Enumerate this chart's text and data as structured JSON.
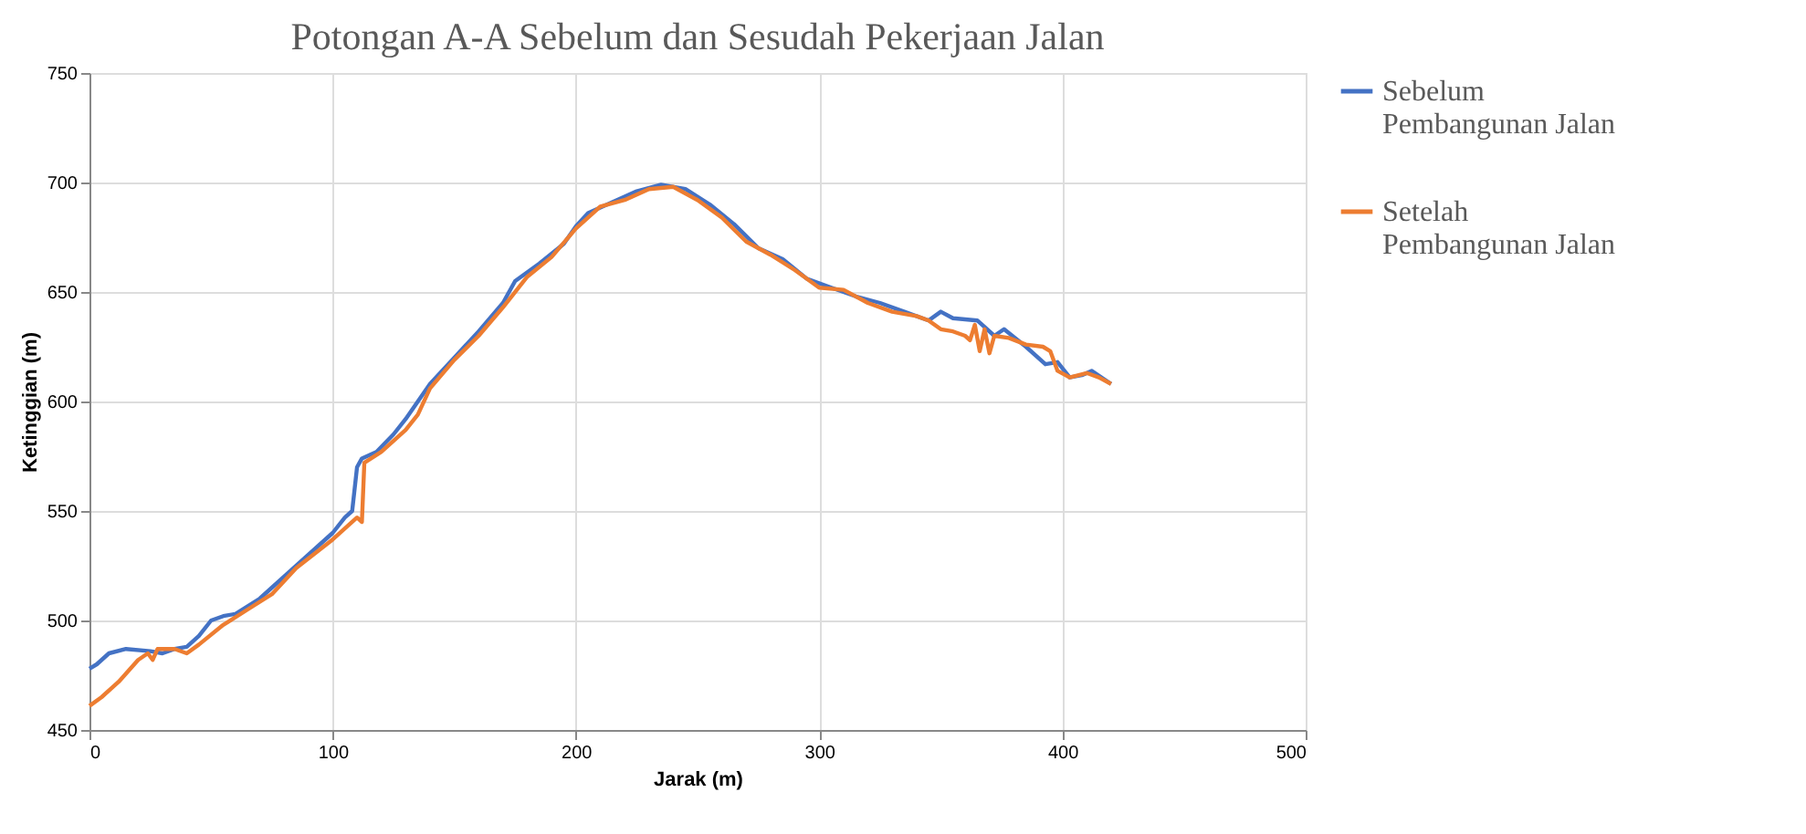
{
  "chart_data": {
    "type": "line",
    "title": "Potongan A-A Sebelum dan Sesudah Pekerjaan Jalan",
    "xlabel": "Jarak (m)",
    "ylabel": "Ketinggian (m)",
    "xlim": [
      0,
      500
    ],
    "xticks": [
      0,
      100,
      200,
      300,
      400,
      500
    ],
    "ylim": [
      450,
      750
    ],
    "yticks": [
      450,
      500,
      550,
      600,
      650,
      700,
      750
    ],
    "grid": true,
    "legend": "right",
    "marker": "none",
    "line_style": "solid",
    "series": [
      {
        "name": "Sebelum Pembangunan Jalan",
        "color": "#4472c4",
        "x": [
          0,
          3,
          8,
          15,
          25,
          30,
          35,
          40,
          45,
          50,
          55,
          60,
          70,
          80,
          90,
          100,
          105,
          108,
          110,
          112,
          118,
          125,
          130,
          135,
          140,
          150,
          160,
          170,
          175,
          185,
          195,
          200,
          205,
          215,
          225,
          235,
          245,
          255,
          265,
          275,
          285,
          295,
          305,
          315,
          325,
          335,
          345,
          350,
          355,
          365,
          372,
          376,
          385,
          393,
          398,
          403,
          408,
          412,
          420
        ],
        "values": [
          478,
          480,
          485,
          487,
          486,
          485,
          487,
          488,
          493,
          500,
          502,
          503,
          510,
          520,
          530,
          540,
          547,
          550,
          570,
          574,
          577,
          585,
          592,
          600,
          608,
          620,
          632,
          645,
          655,
          663,
          672,
          680,
          686,
          691,
          696,
          699,
          697,
          690,
          681,
          670,
          665,
          656,
          652,
          648,
          645,
          641,
          637,
          641,
          638,
          637,
          630,
          633,
          625,
          617,
          618,
          611,
          612,
          614,
          608
        ]
      },
      {
        "name": "Setelah Pembangunan Jalan",
        "color": "#ed7d31",
        "x": [
          0,
          5,
          12,
          20,
          24,
          26,
          28,
          35,
          40,
          45,
          55,
          65,
          75,
          85,
          100,
          110,
          112,
          113,
          120,
          130,
          135,
          140,
          150,
          160,
          170,
          180,
          190,
          200,
          210,
          220,
          230,
          240,
          250,
          260,
          270,
          280,
          290,
          300,
          310,
          320,
          330,
          340,
          345,
          350,
          355,
          360,
          362,
          364,
          366,
          368,
          370,
          372,
          378,
          385,
          392,
          395,
          398,
          403,
          410,
          415,
          420
        ],
        "values": [
          461,
          465,
          472,
          482,
          485,
          482,
          487,
          487,
          485,
          489,
          498,
          505,
          512,
          524,
          537,
          547,
          545,
          572,
          577,
          587,
          594,
          606,
          619,
          630,
          643,
          657,
          666,
          679,
          689,
          692,
          697,
          698,
          692,
          684,
          673,
          667,
          660,
          652,
          651,
          645,
          641,
          639,
          637,
          633,
          632,
          630,
          628,
          635,
          623,
          633,
          622,
          630,
          629,
          626,
          625,
          623,
          614,
          611,
          613,
          611,
          608
        ]
      }
    ]
  }
}
